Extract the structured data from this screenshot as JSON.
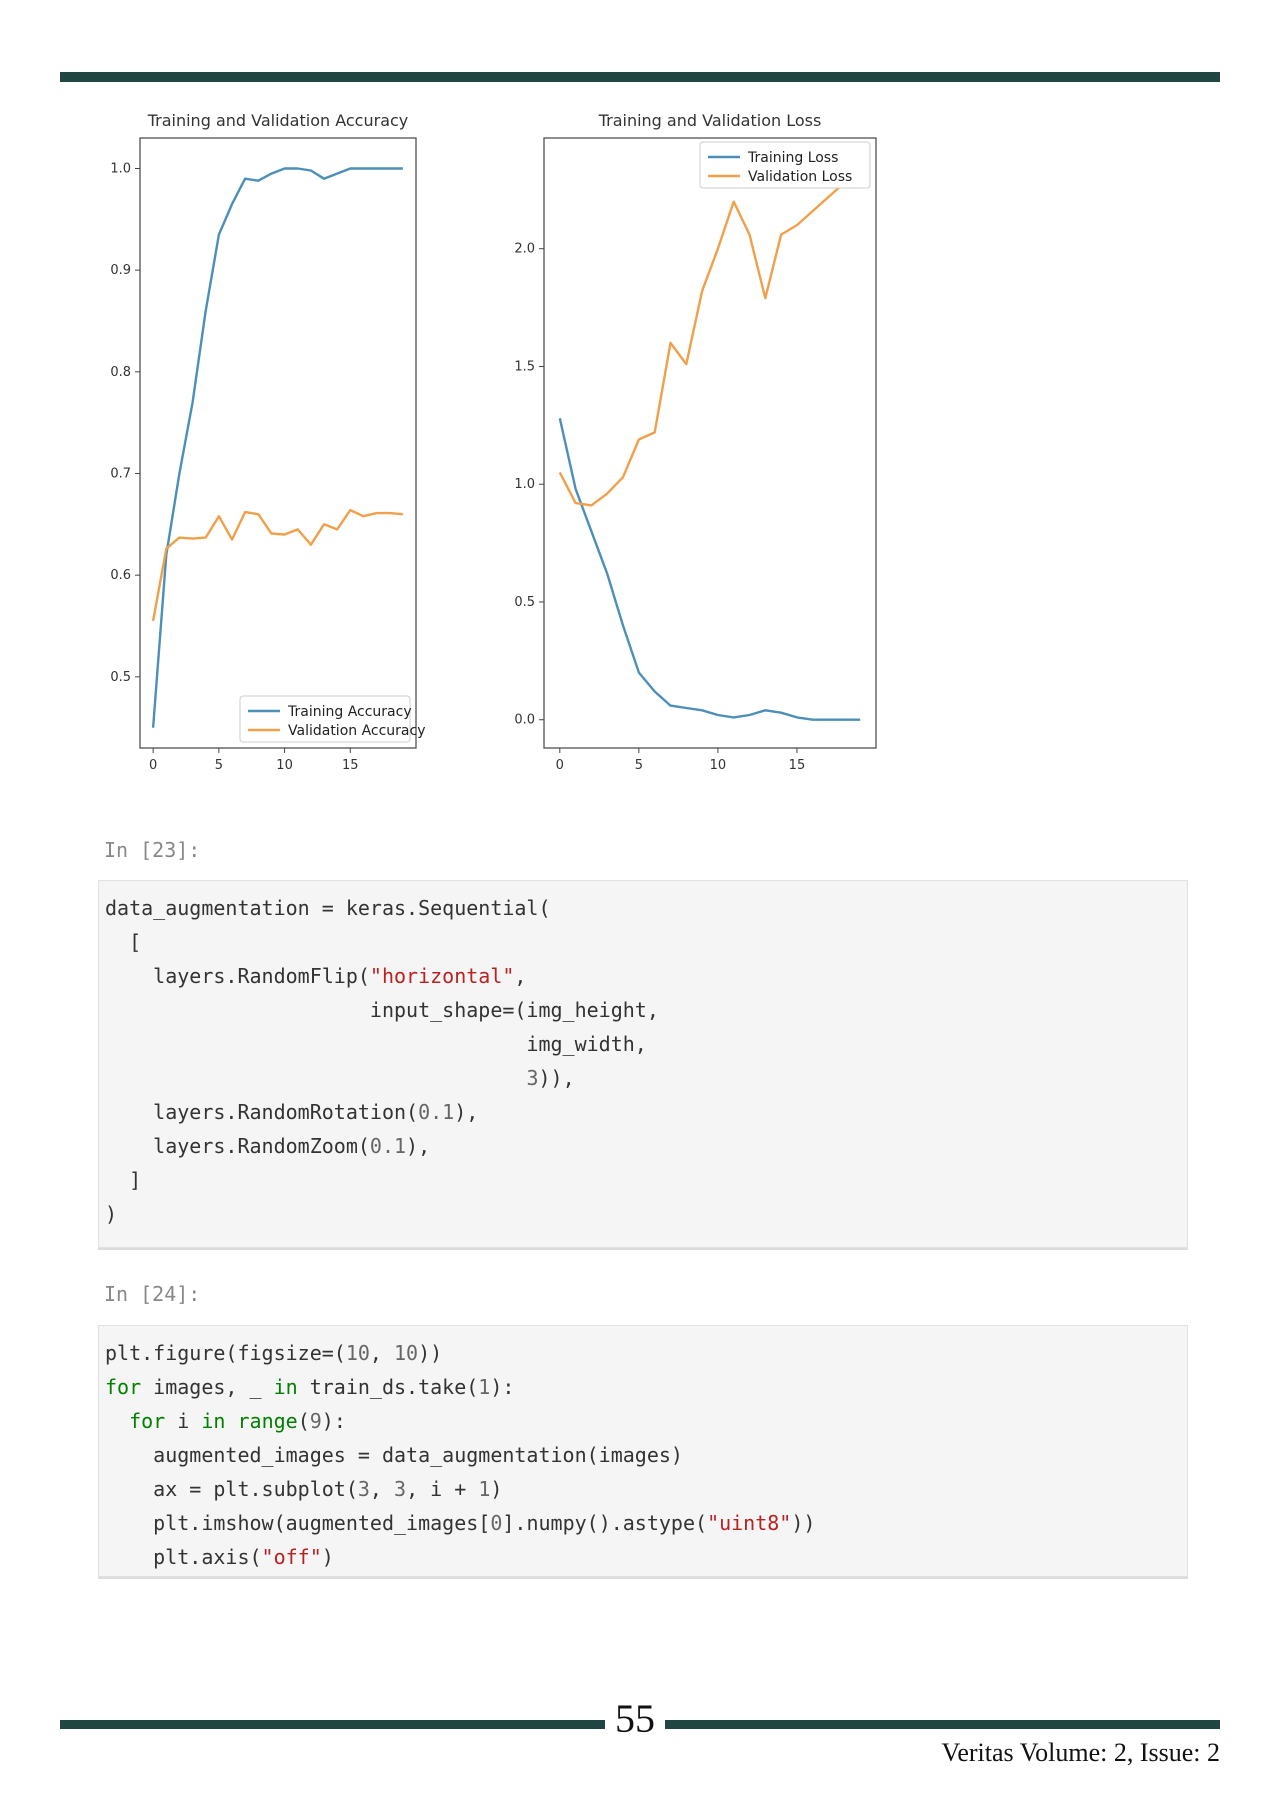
{
  "colors": {
    "training": "#4c8fb9",
    "validation": "#f0a04b",
    "rule": "#1f4640"
  },
  "chart_data": [
    {
      "type": "line",
      "title": "Training and Validation Accuracy",
      "xlabel": "",
      "ylabel": "",
      "xlim": [
        -1,
        20
      ],
      "ylim": [
        0.43,
        1.03
      ],
      "xticks": [
        0,
        5,
        10,
        15
      ],
      "yticks": [
        0.5,
        0.6,
        0.7,
        0.8,
        0.9,
        1.0
      ],
      "ytick_labels": [
        "0.5",
        "0.6",
        "0.7",
        "0.8",
        "0.9",
        "1.0"
      ],
      "legend_position": "lower-right",
      "x": [
        0,
        1,
        2,
        3,
        4,
        5,
        6,
        7,
        8,
        9,
        10,
        11,
        12,
        13,
        14,
        15,
        16,
        17,
        18,
        19
      ],
      "series": [
        {
          "name": "Training Accuracy",
          "color": "#4c8fb9",
          "values": [
            0.45,
            0.62,
            0.7,
            0.77,
            0.86,
            0.935,
            0.965,
            0.99,
            0.988,
            0.995,
            1.0,
            1.0,
            0.998,
            0.99,
            0.995,
            1.0,
            1.0,
            1.0,
            1.0,
            1.0
          ]
        },
        {
          "name": "Validation Accuracy",
          "color": "#f0a04b",
          "values": [
            0.555,
            0.626,
            0.637,
            0.636,
            0.637,
            0.658,
            0.635,
            0.662,
            0.66,
            0.641,
            0.64,
            0.645,
            0.63,
            0.65,
            0.645,
            0.664,
            0.658,
            0.661,
            0.661,
            0.66
          ]
        }
      ]
    },
    {
      "type": "line",
      "title": "Training and Validation Loss",
      "xlabel": "",
      "ylabel": "",
      "xlim": [
        -1,
        20
      ],
      "ylim": [
        -0.12,
        2.47
      ],
      "xticks": [
        0,
        5,
        10,
        15
      ],
      "yticks": [
        0.0,
        0.5,
        1.0,
        1.5,
        2.0
      ],
      "ytick_labels": [
        "0.0",
        "0.5",
        "1.0",
        "1.5",
        "2.0"
      ],
      "legend_position": "upper-right",
      "x": [
        0,
        1,
        2,
        3,
        4,
        5,
        6,
        7,
        8,
        9,
        10,
        11,
        12,
        13,
        14,
        15,
        16,
        17,
        18,
        19
      ],
      "series": [
        {
          "name": "Training Loss",
          "color": "#4c8fb9",
          "values": [
            1.28,
            0.98,
            0.8,
            0.62,
            0.4,
            0.2,
            0.12,
            0.06,
            0.05,
            0.04,
            0.02,
            0.01,
            0.02,
            0.04,
            0.03,
            0.01,
            0.0,
            0.0,
            0.0,
            0.0
          ]
        },
        {
          "name": "Validation Loss",
          "color": "#f0a04b",
          "values": [
            1.05,
            0.92,
            0.91,
            0.96,
            1.03,
            1.19,
            1.22,
            1.6,
            1.51,
            1.82,
            2.0,
            2.2,
            2.06,
            1.79,
            2.06,
            2.1,
            2.16,
            2.22,
            2.28,
            2.4
          ]
        }
      ]
    }
  ],
  "cells": [
    {
      "prompt": "In [23]:",
      "lines": [
        [
          [
            "data_augmentation = keras.Sequential(",
            ""
          ]
        ],
        [
          [
            "  [",
            ""
          ]
        ],
        [
          [
            "    layers.RandomFlip(",
            ""
          ],
          [
            "\"horizontal\"",
            "str"
          ],
          [
            ",",
            ""
          ]
        ],
        [
          [
            "                      input_shape=(img_height,",
            ""
          ]
        ],
        [
          [
            "                                   img_width,",
            ""
          ]
        ],
        [
          [
            "                                   ",
            ""
          ],
          [
            "3",
            "num"
          ],
          [
            ")),",
            ""
          ]
        ],
        [
          [
            "    layers.RandomRotation(",
            ""
          ],
          [
            "0.1",
            "num"
          ],
          [
            "),",
            ""
          ]
        ],
        [
          [
            "    layers.RandomZoom(",
            ""
          ],
          [
            "0.1",
            "num"
          ],
          [
            "),",
            ""
          ]
        ],
        [
          [
            "  ]",
            ""
          ]
        ],
        [
          [
            ")",
            ""
          ]
        ]
      ]
    },
    {
      "prompt": "In [24]:",
      "lines": [
        [
          [
            "plt.figure(figsize=(",
            ""
          ],
          [
            "10",
            "num"
          ],
          [
            ", ",
            ""
          ],
          [
            "10",
            "num"
          ],
          [
            "))",
            ""
          ]
        ],
        [
          [
            "for",
            "kw"
          ],
          [
            " images, _ ",
            ""
          ],
          [
            "in",
            "kw"
          ],
          [
            " train_ds.take(",
            ""
          ],
          [
            "1",
            "num"
          ],
          [
            "):",
            ""
          ]
        ],
        [
          [
            "  ",
            ""
          ],
          [
            "for",
            "kw"
          ],
          [
            " i ",
            ""
          ],
          [
            "in",
            "kw"
          ],
          [
            " ",
            ""
          ],
          [
            "range",
            "kw"
          ],
          [
            "(",
            ""
          ],
          [
            "9",
            "num"
          ],
          [
            "):",
            ""
          ]
        ],
        [
          [
            "    augmented_images = data_augmentation(images)",
            ""
          ]
        ],
        [
          [
            "    ax = plt.subplot(",
            ""
          ],
          [
            "3",
            "num"
          ],
          [
            ", ",
            ""
          ],
          [
            "3",
            "num"
          ],
          [
            ", i + ",
            ""
          ],
          [
            "1",
            "num"
          ],
          [
            ")",
            ""
          ]
        ],
        [
          [
            "    plt.imshow(augmented_images[",
            ""
          ],
          [
            "0",
            "num"
          ],
          [
            "].numpy().astype(",
            ""
          ],
          [
            "\"uint8\"",
            "str"
          ],
          [
            "))",
            ""
          ]
        ],
        [
          [
            "    plt.axis(",
            ""
          ],
          [
            "\"off\"",
            "str"
          ],
          [
            ")",
            ""
          ]
        ]
      ]
    }
  ],
  "footer": {
    "page_number": "55",
    "journal": "Veritas Volume: 2, Issue: 2"
  }
}
